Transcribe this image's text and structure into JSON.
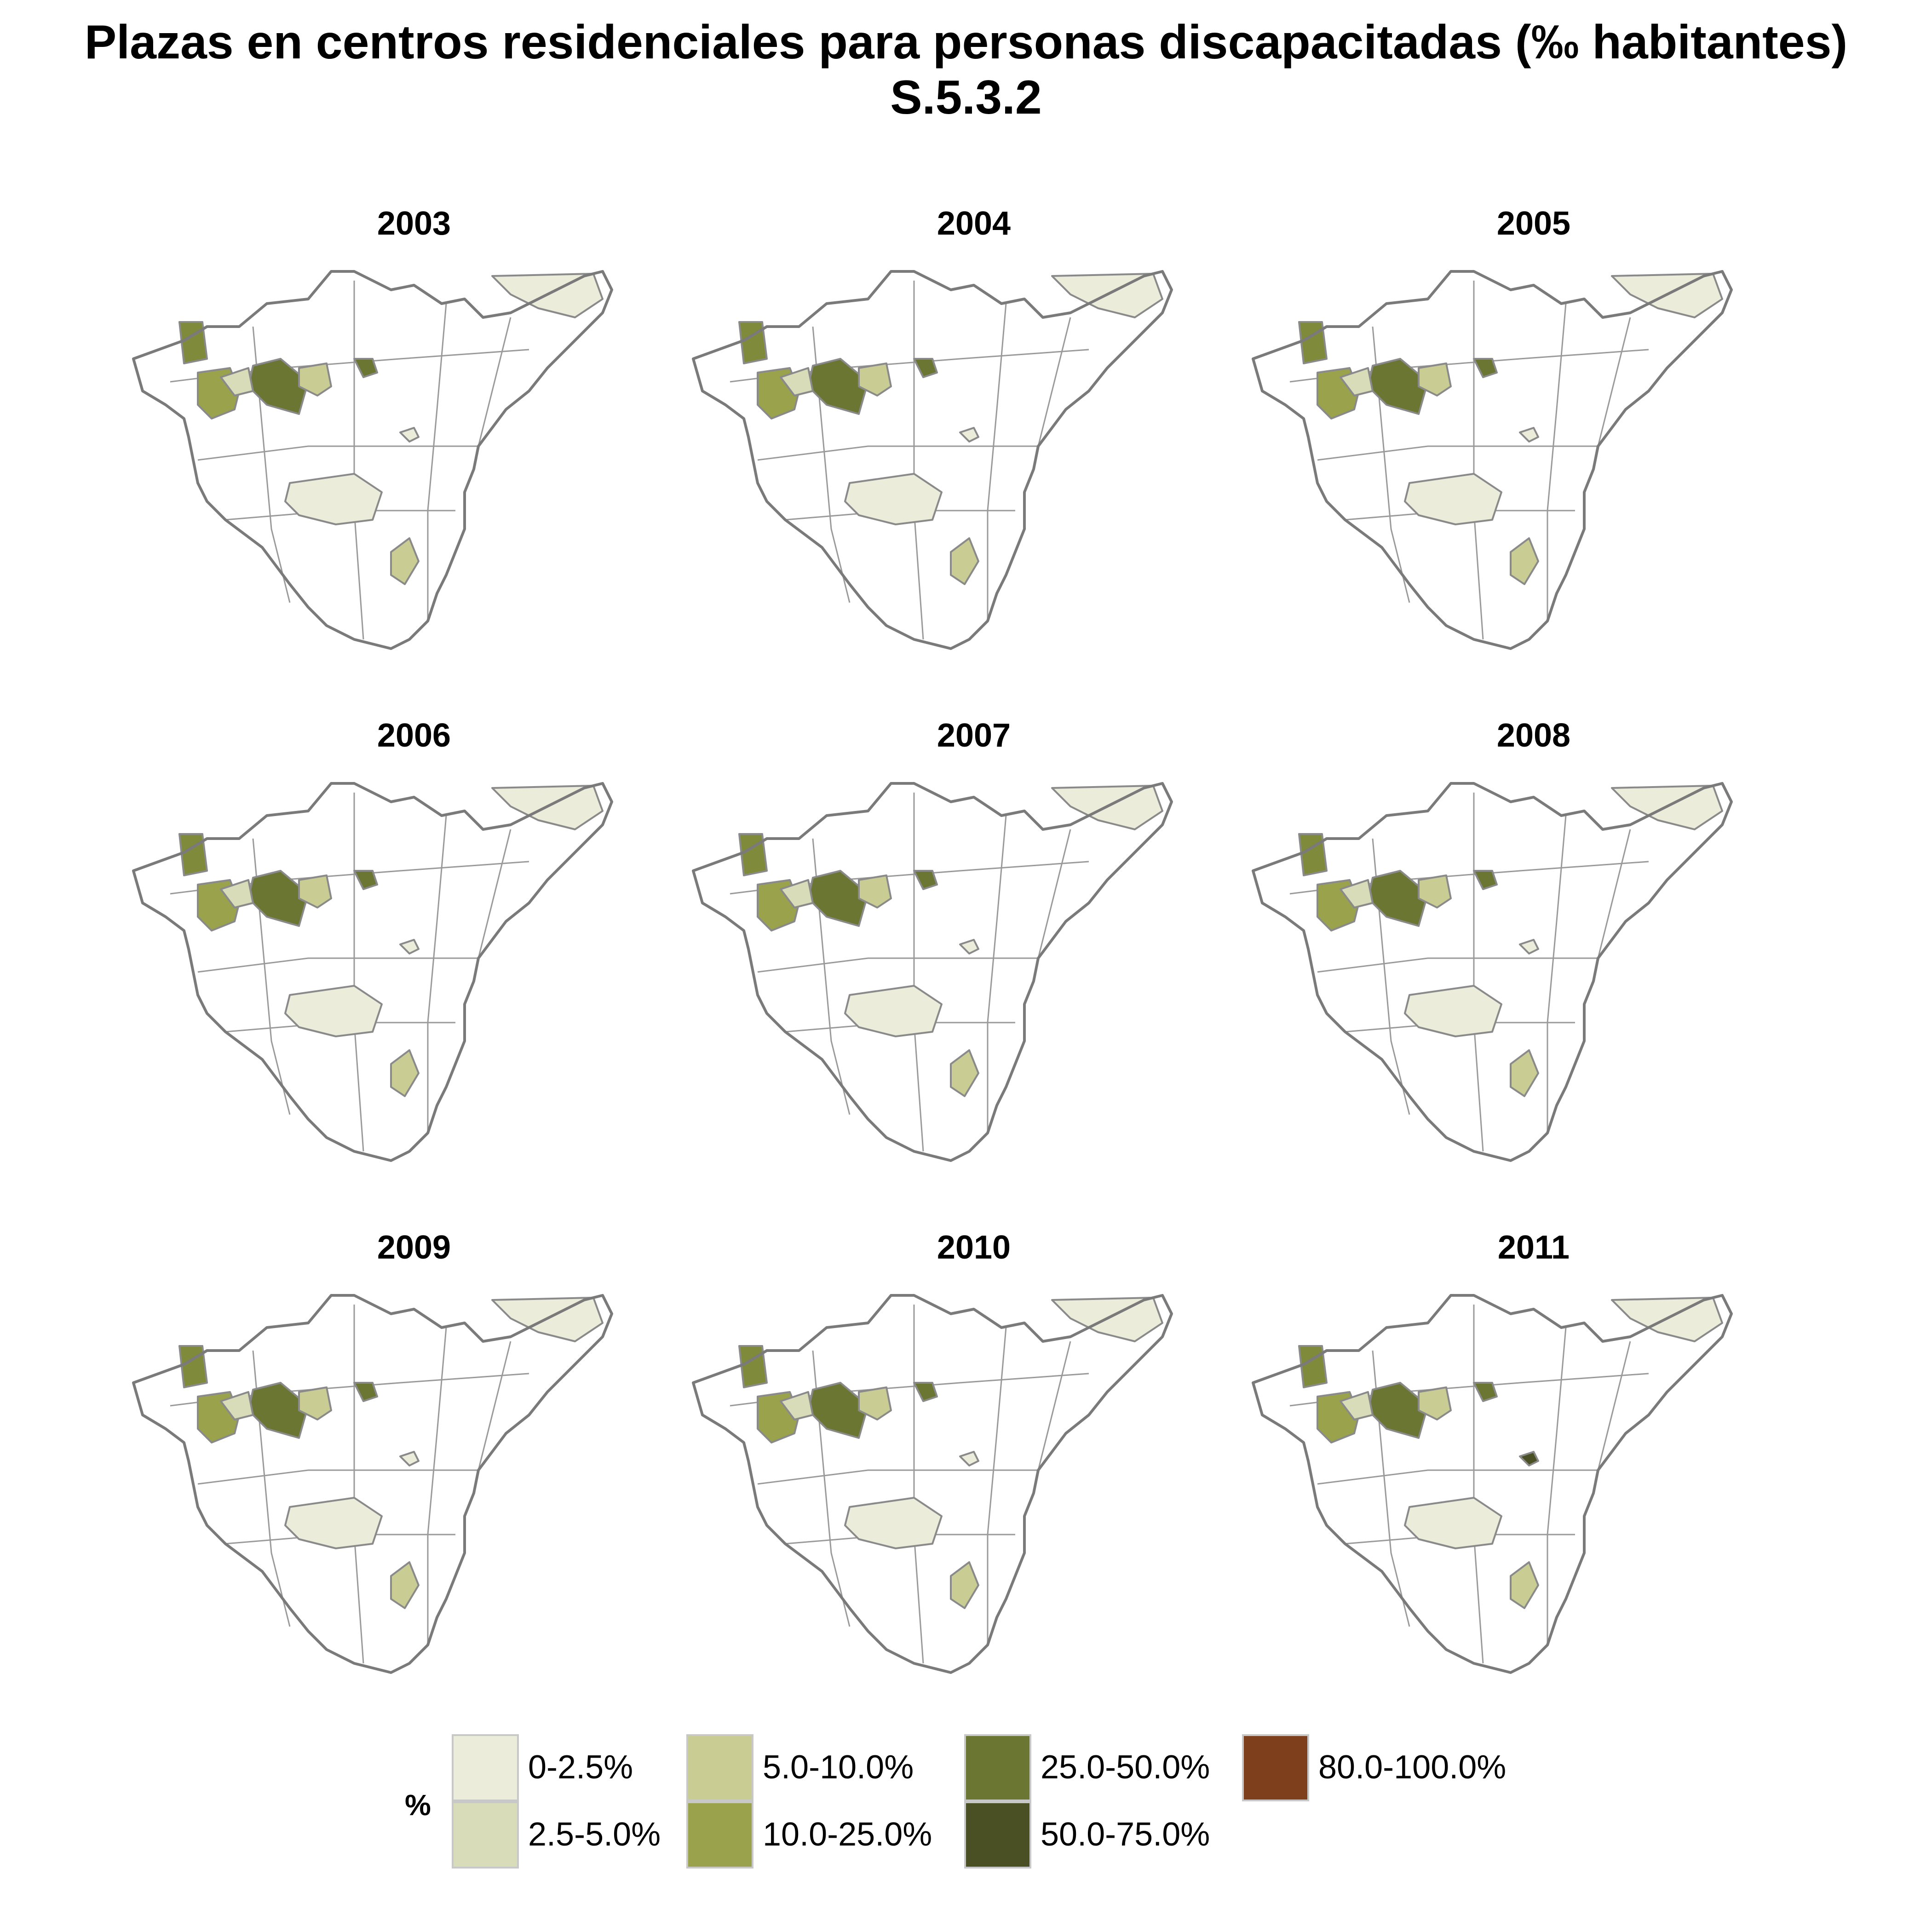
{
  "title": {
    "line1": "Plazas en centros residenciales para personas discapacitadas (‰ habitantes)",
    "line2": "S.5.3.2"
  },
  "panels": [
    {
      "year": "2003",
      "fills": [
        "#ebecda",
        "#7f8a3a",
        "#6b7633",
        "#ebecda",
        "#9aa24b",
        "#d8dcb8",
        "#6b7633",
        "#ebecda",
        "#c9cd93",
        "#c9cd93"
      ]
    },
    {
      "year": "2004",
      "fills": [
        "#ebecda",
        "#7f8a3a",
        "#6b7633",
        "#ebecda",
        "#9aa24b",
        "#d8dcb8",
        "#6b7633",
        "#ebecda",
        "#c9cd93",
        "#c9cd93"
      ]
    },
    {
      "year": "2005",
      "fills": [
        "#ebecda",
        "#7f8a3a",
        "#6b7633",
        "#ebecda",
        "#9aa24b",
        "#d8dcb8",
        "#6b7633",
        "#ebecda",
        "#c9cd93",
        "#c9cd93"
      ]
    },
    {
      "year": "2006",
      "fills": [
        "#ebecda",
        "#7f8a3a",
        "#6b7633",
        "#ebecda",
        "#9aa24b",
        "#d8dcb8",
        "#6b7633",
        "#ebecda",
        "#c9cd93",
        "#c9cd93"
      ]
    },
    {
      "year": "2007",
      "fills": [
        "#ebecda",
        "#7f8a3a",
        "#6b7633",
        "#ebecda",
        "#9aa24b",
        "#d8dcb8",
        "#6b7633",
        "#ebecda",
        "#c9cd93",
        "#c9cd93"
      ]
    },
    {
      "year": "2008",
      "fills": [
        "#ebecda",
        "#7f8a3a",
        "#6b7633",
        "#ebecda",
        "#9aa24b",
        "#d8dcb8",
        "#6b7633",
        "#ebecda",
        "#c9cd93",
        "#c9cd93"
      ]
    },
    {
      "year": "2009",
      "fills": [
        "#ebecda",
        "#7f8a3a",
        "#6b7633",
        "#ebecda",
        "#9aa24b",
        "#d8dcb8",
        "#6b7633",
        "#ebecda",
        "#c9cd93",
        "#c9cd93"
      ]
    },
    {
      "year": "2010",
      "fills": [
        "#ebecda",
        "#7f8a3a",
        "#6b7633",
        "#ebecda",
        "#9aa24b",
        "#d8dcb8",
        "#6b7633",
        "#ebecda",
        "#c9cd93",
        "#c9cd93"
      ]
    },
    {
      "year": "2011",
      "fills": [
        "#ebecda",
        "#7f8a3a",
        "#6b7633",
        "#4a5024",
        "#9aa24b",
        "#d8dcb8",
        "#6b7633",
        "#ebecda",
        "#c9cd93",
        "#c9cd93"
      ]
    }
  ],
  "legend": {
    "title": "%",
    "items": [
      {
        "label": "0-2.5%",
        "color": "#ebecda"
      },
      {
        "label": "2.5-5.0%",
        "color": "#d8dcb8"
      },
      {
        "label": "5.0-10.0%",
        "color": "#c9cd93"
      },
      {
        "label": "10.0-25.0%",
        "color": "#9aa24b"
      },
      {
        "label": "25.0-50.0%",
        "color": "#6b7633"
      },
      {
        "label": "50.0-75.0%",
        "color": "#4a5024"
      },
      {
        "label": "80.0-100.0%",
        "color": "#7e3f1c"
      }
    ]
  }
}
